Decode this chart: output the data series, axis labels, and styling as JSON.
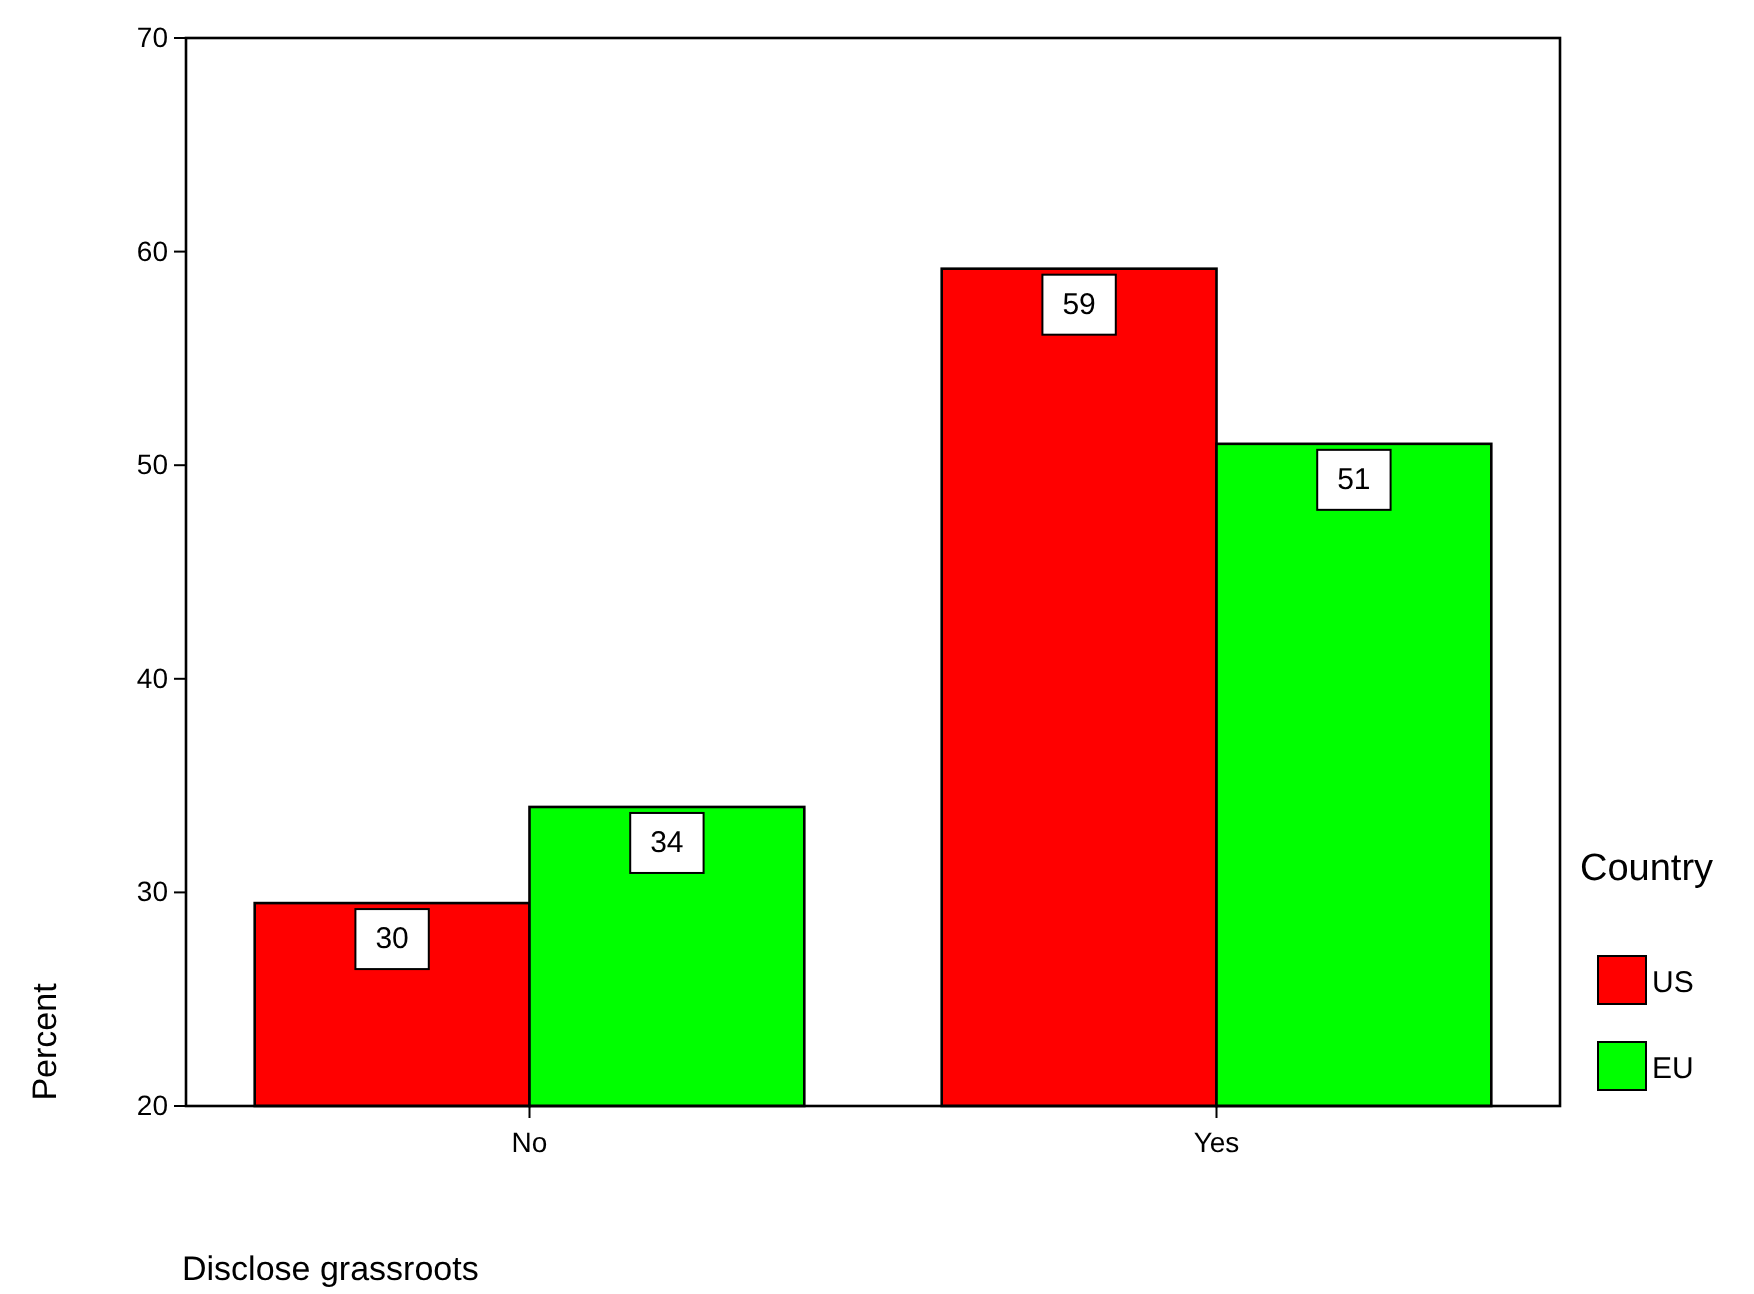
{
  "chart_data": {
    "type": "bar",
    "xlabel": "Disclose grassroots",
    "ylabel": "Percent",
    "legend_title": "Country",
    "categories": [
      "No",
      "Yes"
    ],
    "series": [
      {
        "name": "US",
        "color": "#ff0000",
        "values": [
          29.5,
          59.2
        ],
        "value_labels": [
          "30",
          "59"
        ]
      },
      {
        "name": "EU",
        "color": "#00ff00",
        "values": [
          34.0,
          51.0
        ],
        "value_labels": [
          "34",
          "51"
        ]
      }
    ],
    "ylim": [
      20,
      70
    ],
    "yticks": [
      20,
      30,
      40,
      50,
      60,
      70
    ],
    "grid": false,
    "legend": "right"
  }
}
